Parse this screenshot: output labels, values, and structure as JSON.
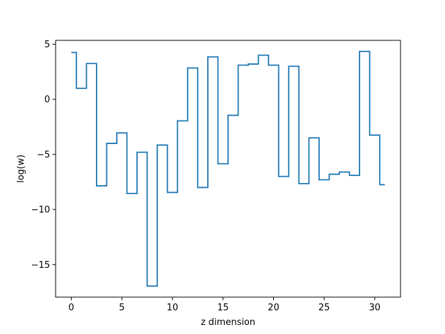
{
  "chart_data": {
    "type": "line",
    "step": "mid",
    "xlabel": "z dimension",
    "ylabel": "log(w)",
    "xlim": [
      -1.55,
      32.55
    ],
    "ylim": [
      -17.95,
      5.35
    ],
    "xticks": [
      0,
      5,
      10,
      15,
      20,
      25,
      30
    ],
    "yticks": [
      5,
      0,
      -5,
      -10,
      -15
    ],
    "ytick_labels": [
      "5",
      "0",
      "−5",
      "−10",
      "−15"
    ],
    "grid": false,
    "series": [
      {
        "color": "#1f77b4",
        "x": [
          0,
          1,
          2,
          3,
          4,
          5,
          6,
          7,
          8,
          9,
          10,
          11,
          12,
          13,
          14,
          15,
          16,
          17,
          18,
          19,
          20,
          21,
          22,
          23,
          24,
          25,
          26,
          27,
          28,
          29,
          30,
          31
        ],
        "values": [
          4.25,
          1.0,
          3.25,
          -7.85,
          -4.0,
          -3.05,
          -8.55,
          -4.8,
          -16.95,
          -4.15,
          -8.45,
          -1.95,
          2.85,
          -8.0,
          3.85,
          -5.85,
          -1.45,
          3.1,
          3.2,
          4.0,
          3.1,
          -7.0,
          3.0,
          -7.65,
          -3.5,
          -7.3,
          -6.8,
          -6.6,
          -6.9,
          4.35,
          -3.25,
          -7.75
        ]
      }
    ]
  }
}
